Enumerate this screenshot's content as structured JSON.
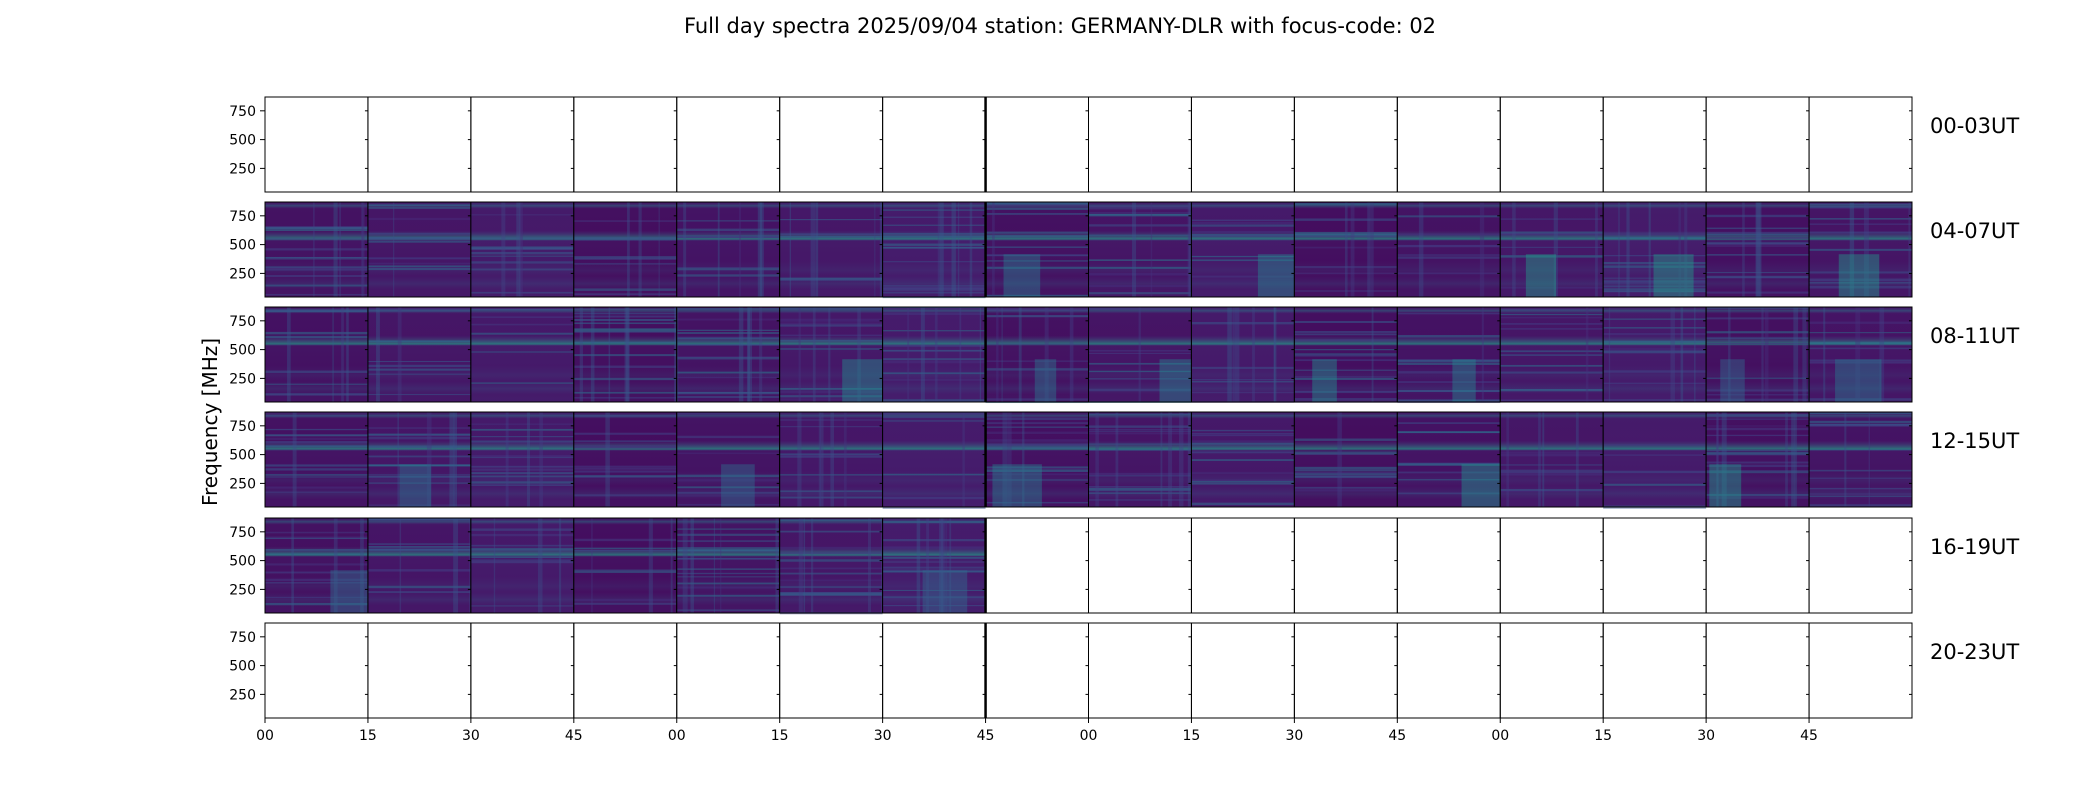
{
  "chart_data": {
    "type": "heatmap",
    "title": "Full day spectra 2025/09/04 station: GERMANY-DLR with focus-code: 02",
    "ylabel": "Frequency [MHz]",
    "xlabel": "",
    "yticks": [
      "250",
      "500",
      "750"
    ],
    "ylim": [
      45,
      870
    ],
    "xtick_labels": [
      "00",
      "15",
      "30",
      "45",
      "00",
      "15",
      "30",
      "45",
      "00",
      "15",
      "30",
      "45",
      "00",
      "15",
      "30",
      "45"
    ],
    "rows": [
      {
        "label": "00-03UT",
        "panels": [
          0,
          0,
          0,
          0,
          0,
          0,
          0,
          0,
          0,
          0,
          0,
          0,
          0,
          0,
          0,
          0
        ]
      },
      {
        "label": "04-07UT",
        "panels": [
          1,
          1,
          1,
          1,
          1,
          1,
          1,
          1,
          1,
          1,
          1,
          1,
          1,
          1,
          1,
          1
        ]
      },
      {
        "label": "08-11UT",
        "panels": [
          1,
          1,
          1,
          1,
          1,
          1,
          1,
          1,
          1,
          1,
          1,
          1,
          1,
          1,
          1,
          1
        ]
      },
      {
        "label": "12-15UT",
        "panels": [
          1,
          1,
          1,
          1,
          1,
          1,
          1,
          1,
          1,
          1,
          1,
          1,
          1,
          1,
          1,
          1
        ]
      },
      {
        "label": "16-19UT",
        "panels": [
          1,
          1,
          1,
          1,
          1,
          1,
          1,
          0,
          0,
          0,
          0,
          0,
          0,
          0,
          0,
          0
        ]
      },
      {
        "label": "20-23UT",
        "panels": [
          0,
          0,
          0,
          0,
          0,
          0,
          0,
          0,
          0,
          0,
          0,
          0,
          0,
          0,
          0,
          0
        ]
      }
    ],
    "colormap": "viridis",
    "grid": false,
    "legend": "none"
  }
}
